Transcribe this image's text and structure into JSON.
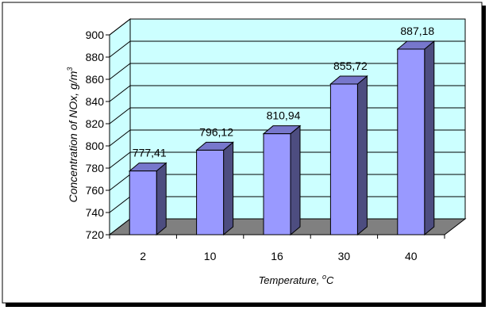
{
  "chart_data": {
    "type": "bar",
    "categories": [
      "2",
      "10",
      "16",
      "30",
      "40"
    ],
    "values": [
      777.41,
      796.12,
      810.94,
      855.72,
      887.18
    ],
    "value_labels": [
      "777,41",
      "796,12",
      "810,94",
      "855,72",
      "887,18"
    ],
    "xlabel": "Temperature, ",
    "xlabel_unit_superscript": "o",
    "xlabel_unit": "C",
    "ylabel": "Concentration of  NOx, g/m",
    "ylabel_superscript": "3",
    "ylim": [
      720,
      900
    ],
    "yticks": [
      720,
      740,
      760,
      780,
      800,
      820,
      840,
      860,
      880,
      900
    ],
    "grid": true,
    "three_d": true,
    "colors": {
      "wall": "#ccffff",
      "floor": "#808080",
      "bar_front": "#9999ff",
      "bar_side": "#4d4d80",
      "bar_top": "#7777cc",
      "frame_shadow": "#000000"
    }
  }
}
